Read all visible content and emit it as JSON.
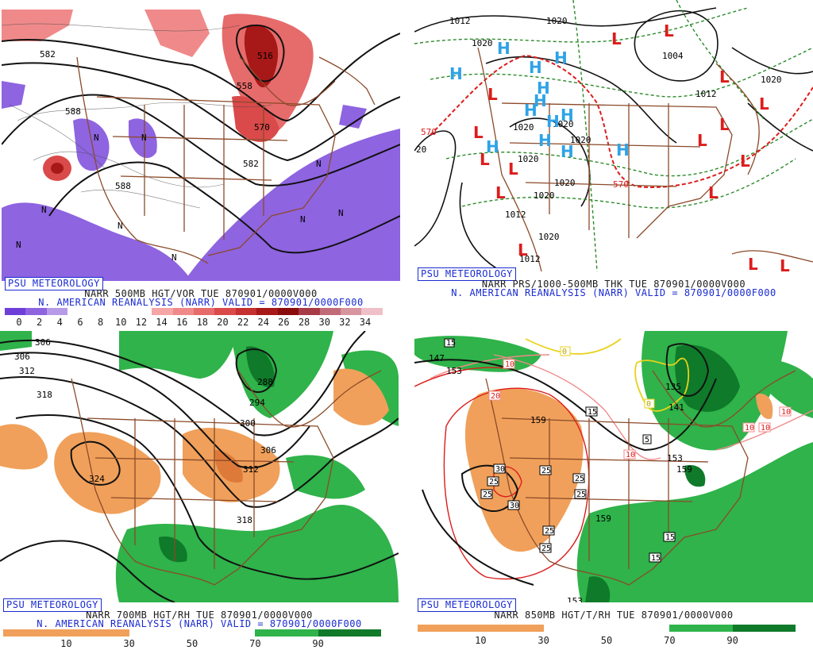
{
  "panels": [
    {
      "id": "p1",
      "psu": "PSU METEOROLOGY",
      "line1": "NARR 500MB HGT/VOR TUE 870901/0000V000",
      "line2": "N. AMERICAN REANALYSIS (NARR) VALID = 870901/0000F000",
      "ticks": [
        "0",
        "2",
        "4",
        "6",
        "8",
        "10",
        "12",
        "14",
        "16",
        "18",
        "20",
        "22",
        "24",
        "26",
        "28",
        "30",
        "32",
        "34"
      ],
      "colorbar": [
        "#6e3fd8",
        "#8e64e0",
        "#b79be6",
        "#ffffff",
        "#ffffff",
        "#ffffff",
        "#ffffff",
        "#f6a6a6",
        "#f08a8a",
        "#e66b6b",
        "#da4a4a",
        "#c53030",
        "#a71818",
        "#8a0c0c",
        "#a83a48",
        "#c16b78",
        "#d895a0",
        "#f0c0c8"
      ],
      "labels": [
        "582",
        "516",
        "558",
        "570",
        "582",
        "588",
        "588",
        "N",
        "N",
        "N",
        "N",
        "N",
        "N",
        "N",
        "N",
        "N"
      ]
    },
    {
      "id": "p2",
      "psu": "PSU METEOROLOGY",
      "line1": "NARR PRS/1000-500MB THK TUE 870901/0000V000",
      "line2": "N. AMERICAN REANALYSIS (NARR) VALID = 870901/0000F000",
      "labels": [
        "1012",
        "1020",
        "1020",
        "1004",
        "1020",
        "1012",
        "1020",
        "1020",
        "1020",
        "1020",
        "1020",
        "1020",
        "1012",
        "1012",
        "1020",
        "570",
        "570",
        "20",
        "1020"
      ],
      "highs": [
        "H",
        "H",
        "H",
        "H",
        "H",
        "H",
        "H",
        "H",
        "H",
        "H",
        "H",
        "H",
        "H"
      ],
      "lows": [
        "L",
        "L",
        "L",
        "L",
        "L",
        "L",
        "L",
        "L",
        "L",
        "L",
        "L",
        "L",
        "L",
        "L",
        "L",
        "L"
      ]
    },
    {
      "id": "p3",
      "psu": "PSU METEOROLOGY",
      "line1": "NARR 700MB HGT/RH TUE 870901/0000V000",
      "line2": "N. AMERICAN REANALYSIS (NARR) VALID = 870901/0000F000",
      "ticks": [
        "10",
        "30",
        "50",
        "70",
        "90"
      ],
      "colorbar": [
        "#f0a05a",
        "#f0a05a",
        "#ffffff",
        "#ffffff",
        "#2fb34a",
        "#0f7a2a"
      ],
      "labels": [
        "306",
        "306",
        "312",
        "318",
        "324",
        "288",
        "294",
        "300",
        "306",
        "312",
        "318"
      ]
    },
    {
      "id": "p4",
      "psu": "PSU METEOROLOGY",
      "line1": "NARR 850MB HGT/T/RH TUE 870901/0000V000",
      "line2": "",
      "ticks": [
        "10",
        "30",
        "50",
        "70",
        "90"
      ],
      "colorbar": [
        "#f0a05a",
        "#f0a05a",
        "#ffffff",
        "#ffffff",
        "#2fb34a",
        "#0f7a2a"
      ],
      "labels": [
        "147",
        "153",
        "159",
        "135",
        "141",
        "159",
        "153",
        "159",
        "153"
      ],
      "boxes_black": [
        "15",
        "15",
        "5",
        "15",
        "15",
        "25",
        "25",
        "25",
        "25",
        "25",
        "25",
        "25",
        "30",
        "30",
        "15"
      ],
      "boxes_red": [
        "10",
        "20",
        "10",
        "10",
        "10",
        "10"
      ],
      "boxes_yellow": [
        "0",
        "0"
      ]
    }
  ]
}
